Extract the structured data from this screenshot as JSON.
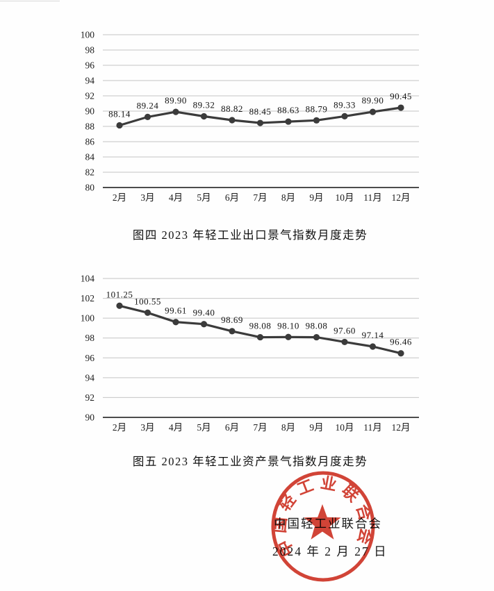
{
  "chart_data": [
    {
      "type": "line",
      "title": "图四 2023 年轻工业出口景气指数月度走势",
      "categories": [
        "2月",
        "3月",
        "4月",
        "5月",
        "6月",
        "7月",
        "8月",
        "9月",
        "10月",
        "11月",
        "12月"
      ],
      "values": [
        88.14,
        89.24,
        89.9,
        89.32,
        88.82,
        88.45,
        88.63,
        88.79,
        89.33,
        89.9,
        90.45
      ],
      "point_labels": [
        "88.14",
        "89.24",
        "89.90",
        "89.32",
        "88.82",
        "88.45",
        "88.63",
        "88.79",
        "89.33",
        "89.90",
        "90.45"
      ],
      "yticks": [
        80,
        82,
        84,
        86,
        88,
        90,
        92,
        94,
        96,
        98,
        100
      ],
      "ylim": [
        80,
        100
      ],
      "ytick_step": 2,
      "xlabel": "",
      "ylabel": "",
      "grid": true,
      "legend_position": "none",
      "line_color": "#3b3b3b",
      "marker_color": "#3b3b3b",
      "grid_color": "#c4c4c4",
      "axis_color": "#4c4c4c"
    },
    {
      "type": "line",
      "title": "图五 2023 年轻工业资产景气指数月度走势",
      "categories": [
        "2月",
        "3月",
        "4月",
        "5月",
        "6月",
        "7月",
        "8月",
        "9月",
        "10月",
        "11月",
        "12月"
      ],
      "values": [
        101.25,
        100.55,
        99.61,
        99.4,
        98.69,
        98.08,
        98.1,
        98.08,
        97.6,
        97.14,
        96.46
      ],
      "point_labels": [
        "101.25",
        "100.55",
        "99.61",
        "99.40",
        "98.69",
        "98.08",
        "98.10",
        "98.08",
        "97.60",
        "97.14",
        "96.46"
      ],
      "yticks": [
        90,
        92,
        94,
        96,
        98,
        100,
        102,
        104
      ],
      "ylim": [
        90,
        104
      ],
      "ytick_step": 2,
      "xlabel": "",
      "ylabel": "",
      "grid": true,
      "legend_position": "none",
      "line_color": "#3b3b3b",
      "marker_color": "#3b3b3b",
      "grid_color": "#c4c4c4",
      "axis_color": "#4c4c4c"
    }
  ],
  "footer": {
    "org_name": "中国轻工业联合会",
    "date": "2024 年 2 月 27 日",
    "seal": {
      "text": "中国轻工业联合会",
      "color": "#cf3527",
      "star": "five-pointed-star"
    }
  }
}
